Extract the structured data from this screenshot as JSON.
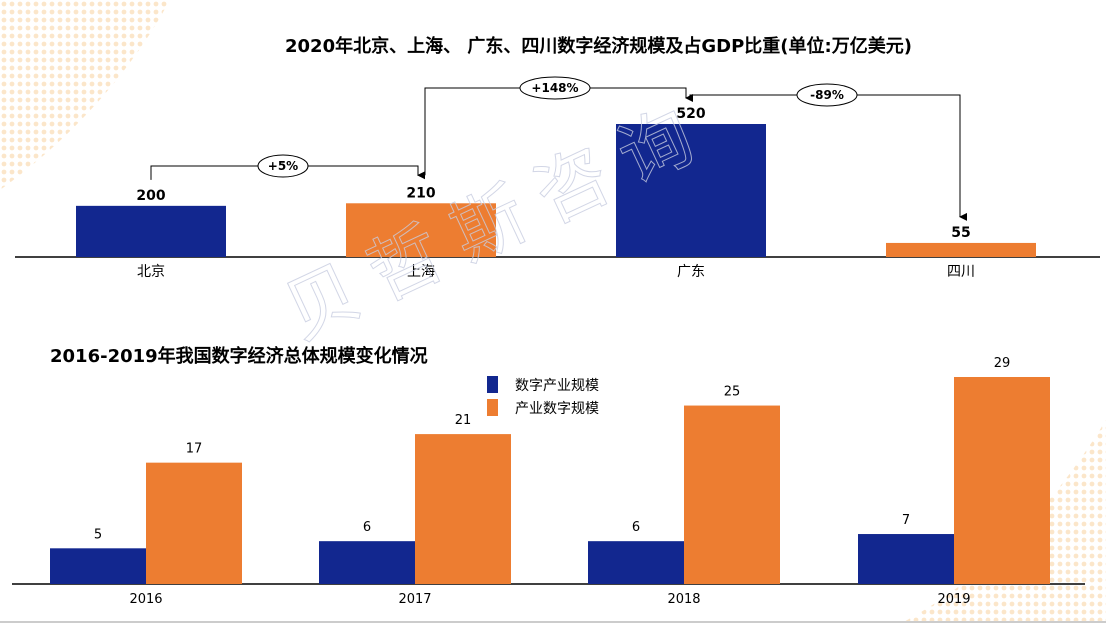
{
  "colors": {
    "blue": "#12278F",
    "orange": "#ED7D31"
  },
  "watermark": "贝哲斯咨询",
  "chart_data": [
    {
      "type": "bar",
      "title": "2020年北京、上海、 广东、四川数字经济规模及占GDP比重(单位:万亿美元)",
      "categories": [
        "北京",
        "上海",
        "广东",
        "四川"
      ],
      "values": [
        200,
        210,
        520,
        55
      ],
      "bar_colors": [
        "blue",
        "orange",
        "blue",
        "orange"
      ],
      "annotations": [
        {
          "from": "北京",
          "to": "上海",
          "label": "+5%"
        },
        {
          "from": "上海",
          "to": "广东",
          "label": "+148%"
        },
        {
          "from": "广东",
          "to": "四川",
          "label": "-89%"
        }
      ]
    },
    {
      "type": "bar",
      "title": "2016-2019年我国数字经济总体规模变化情况",
      "categories": [
        "2016",
        "2017",
        "2018",
        "2019"
      ],
      "series": [
        {
          "name": "数字产业规模",
          "color": "blue",
          "values": [
            5,
            6,
            6,
            7
          ]
        },
        {
          "name": "产业数字规模",
          "color": "orange",
          "values": [
            17,
            21,
            25,
            29
          ]
        }
      ],
      "legend": "top-center"
    }
  ]
}
